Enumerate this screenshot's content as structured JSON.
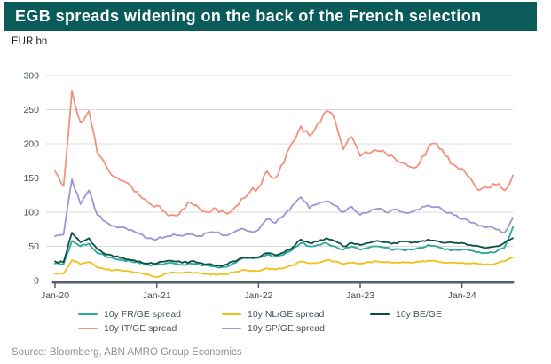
{
  "title": "EGB spreads widening on the back of the French selection",
  "title_bar_color": "#0B5B5B",
  "y_axis_unit_label": "EUR bn",
  "source": "Source: Bloomberg, ABN AMRO Group Economics",
  "chart_data": {
    "type": "line",
    "title": "EGB spreads widening on the back of the French selection",
    "ylabel": "EUR bn",
    "xlabel": "",
    "ylim": [
      0,
      300
    ],
    "y_ticks": [
      0,
      50,
      100,
      150,
      200,
      250,
      300
    ],
    "x_ticks": [
      "Jan-20",
      "Jan-21",
      "Jan-22",
      "Jan-23",
      "Jan-24"
    ],
    "x_unit": "month",
    "x_start": "Jan-20",
    "x_end": "Jul-24",
    "grid": "horizontal",
    "legend_position": "bottom",
    "axis_color": "#52606C",
    "grid_color": "#D9D9D9",
    "tick_label_color": "#3F4D5B",
    "series": [
      {
        "key": "fr",
        "name": "10y FR/GE spread",
        "color": "#29A79A",
        "values": [
          25,
          24,
          58,
          50,
          54,
          40,
          35,
          32,
          30,
          28,
          25,
          23,
          23,
          25,
          25,
          23,
          25,
          23,
          22,
          20,
          20,
          25,
          32,
          33,
          33,
          38,
          35,
          38,
          45,
          55,
          50,
          52,
          55,
          50,
          45,
          50,
          45,
          48,
          50,
          48,
          45,
          45,
          45,
          48,
          52,
          50,
          45,
          45,
          45,
          44,
          42,
          40,
          42,
          48,
          78
        ]
      },
      {
        "key": "it",
        "name": "10y IT/GE spread",
        "color": "#F2917E",
        "values": [
          160,
          138,
          278,
          232,
          248,
          186,
          168,
          152,
          146,
          138,
          124,
          114,
          110,
          100,
          96,
          104,
          114,
          106,
          100,
          106,
          100,
          104,
          120,
          130,
          136,
          160,
          150,
          172,
          202,
          226,
          212,
          230,
          248,
          236,
          192,
          210,
          182,
          186,
          190,
          186,
          180,
          172,
          166,
          172,
          194,
          200,
          182,
          170,
          164,
          150,
          132,
          136,
          140,
          132,
          154
        ]
      },
      {
        "key": "nl",
        "name": "10y NL/GE spread",
        "color": "#EFC019",
        "values": [
          10,
          10,
          30,
          24,
          27,
          19,
          16,
          15,
          14,
          13,
          11,
          9,
          5,
          10,
          12,
          11,
          12,
          11,
          10,
          8,
          9,
          12,
          15,
          14,
          14,
          18,
          16,
          18,
          22,
          28,
          25,
          26,
          30,
          28,
          24,
          26,
          25,
          27,
          28,
          27,
          26,
          27,
          26,
          27,
          29,
          28,
          26,
          26,
          26,
          25,
          24,
          24,
          25,
          28,
          34
        ]
      },
      {
        "key": "sp",
        "name": "10y SP/GE spread",
        "color": "#9E93D3",
        "values": [
          65,
          67,
          148,
          112,
          132,
          96,
          86,
          80,
          78,
          74,
          68,
          62,
          60,
          64,
          68,
          65,
          68,
          65,
          70,
          70,
          66,
          70,
          76,
          72,
          74,
          90,
          84,
          95,
          110,
          122,
          106,
          112,
          116,
          110,
          100,
          108,
          96,
          100,
          105,
          100,
          104,
          100,
          100,
          104,
          110,
          108,
          100,
          96,
          90,
          85,
          80,
          78,
          75,
          70,
          92
        ]
      },
      {
        "key": "be",
        "name": "10y BE/GE",
        "color": "#0D4F44",
        "values": [
          28,
          27,
          70,
          56,
          62,
          46,
          38,
          35,
          33,
          30,
          28,
          25,
          25,
          28,
          28,
          26,
          28,
          26,
          24,
          22,
          23,
          28,
          33,
          34,
          34,
          40,
          37,
          41,
          48,
          60,
          55,
          57,
          62,
          58,
          50,
          55,
          52,
          55,
          58,
          56,
          55,
          57,
          55,
          57,
          60,
          58,
          55,
          55,
          55,
          52,
          50,
          48,
          50,
          55,
          62
        ]
      }
    ]
  }
}
